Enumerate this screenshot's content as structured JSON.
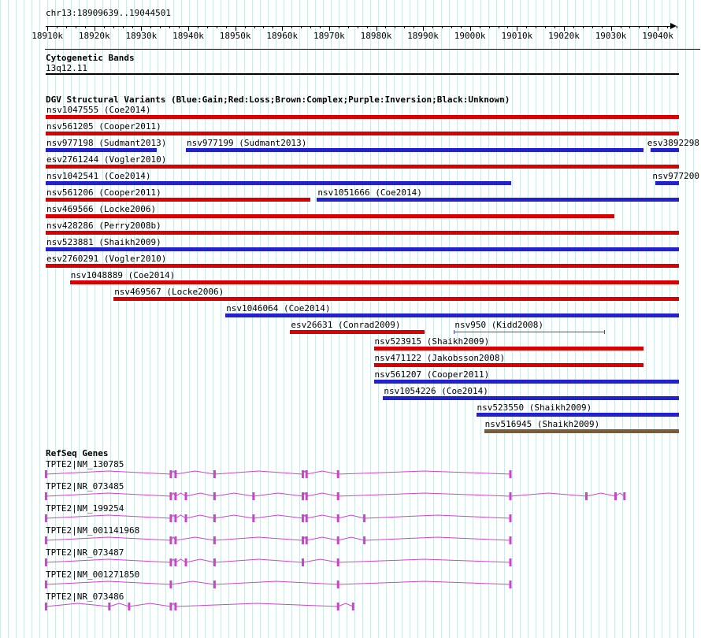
{
  "header": {
    "region": "chr13:18909639..19044501"
  },
  "region": {
    "start": 18909639,
    "end": 19044501
  },
  "ruler": {
    "minor_step": 2000,
    "ticks": [
      {
        "text": "18910k",
        "coord": 18910000
      },
      {
        "text": "18920k",
        "coord": 18920000
      },
      {
        "text": "18930k",
        "coord": 18930000
      },
      {
        "text": "18940k",
        "coord": 18940000
      },
      {
        "text": "18950k",
        "coord": 18950000
      },
      {
        "text": "18960k",
        "coord": 18960000
      },
      {
        "text": "18970k",
        "coord": 18970000
      },
      {
        "text": "18980k",
        "coord": 18980000
      },
      {
        "text": "18990k",
        "coord": 18990000
      },
      {
        "text": "19000k",
        "coord": 19000000
      },
      {
        "text": "19010k",
        "coord": 19010000
      },
      {
        "text": "19020k",
        "coord": 19020000
      },
      {
        "text": "19030k",
        "coord": 19030000
      },
      {
        "text": "19040k",
        "coord": 19040000
      }
    ]
  },
  "cytobands": {
    "title": "Cytogenetic Bands",
    "band": "13q12.11"
  },
  "dgv": {
    "title": "DGV Structural Variants (Blue:Gain;Red:Loss;Brown:Complex;Purple:Inversion;Black:Unknown)",
    "colors": {
      "gain": "#2222cc",
      "loss": "#d80000",
      "complex": "#7e5c33",
      "inversion": "#4444cc",
      "unknown": "#000000"
    },
    "rows": [
      {
        "items": [
          {
            "label": "nsv1047555 (Coe2014)",
            "color": "loss",
            "start": 18909639,
            "end": 19044501
          }
        ]
      },
      {
        "items": [
          {
            "label": "nsv561205 (Cooper2011)",
            "color": "loss",
            "start": 18909639,
            "end": 19044501
          }
        ]
      },
      {
        "items": [
          {
            "label": "nsv977198 (Sudmant2013)",
            "color": "gain",
            "start": 18909639,
            "end": 18933200
          },
          {
            "label": "nsv977199 (Sudmant2013)",
            "color": "gain",
            "start": 18939500,
            "end": 19037000
          },
          {
            "label": "esv3892298",
            "color": "gain",
            "start": 19038500,
            "end": 19044501
          }
        ]
      },
      {
        "items": [
          {
            "label": "esv2761244 (Vogler2010)",
            "color": "loss",
            "start": 18909639,
            "end": 19044501
          }
        ]
      },
      {
        "items": [
          {
            "label": "nsv1042541 (Coe2014)",
            "color": "gain",
            "start": 18909639,
            "end": 19008800
          },
          {
            "label": "nsv977200",
            "color": "gain",
            "start": 19039500,
            "end": 19044501
          }
        ]
      },
      {
        "items": [
          {
            "label": "nsv561206 (Cooper2011)",
            "color": "loss",
            "start": 18909639,
            "end": 18966000
          },
          {
            "label": "nsv1051666 (Coe2014)",
            "color": "gain",
            "start": 18967400,
            "end": 19044501
          }
        ]
      },
      {
        "items": [
          {
            "label": "nsv469566 (Locke2006)",
            "color": "loss",
            "start": 18909639,
            "end": 19030700
          }
        ]
      },
      {
        "items": [
          {
            "label": "nsv428286 (Perry2008b)",
            "color": "loss",
            "start": 18909639,
            "end": 19044501
          }
        ]
      },
      {
        "items": [
          {
            "label": "nsv523881 (Shaikh2009)",
            "color": "gain",
            "start": 18909639,
            "end": 19044501
          }
        ]
      },
      {
        "items": [
          {
            "label": "esv2760291 (Vogler2010)",
            "color": "loss",
            "start": 18909639,
            "end": 19044501
          }
        ]
      },
      {
        "items": [
          {
            "label": "nsv1048889 (Coe2014)",
            "color": "loss",
            "start": 18914800,
            "end": 19044501
          }
        ]
      },
      {
        "items": [
          {
            "label": "nsv469567 (Locke2006)",
            "color": "loss",
            "start": 18924100,
            "end": 19044501
          }
        ]
      },
      {
        "items": [
          {
            "label": "nsv1046064 (Coe2014)",
            "color": "gain",
            "start": 18947900,
            "end": 19044501
          }
        ]
      },
      {
        "items": [
          {
            "label": "esv26631 (Conrad2009)",
            "color": "loss",
            "start": 18961700,
            "end": 18990400
          },
          {
            "label": "nsv950 (Kidd2008)",
            "color": "inversion",
            "style": "line",
            "start": 18996600,
            "end": 19028700
          }
        ]
      },
      {
        "items": [
          {
            "label": "nsv523915 (Shaikh2009)",
            "color": "loss",
            "start": 18979500,
            "end": 19037000
          }
        ]
      },
      {
        "items": [
          {
            "label": "nsv471122 (Jakobsson2008)",
            "color": "loss",
            "start": 18979500,
            "end": 19037000
          }
        ]
      },
      {
        "items": [
          {
            "label": "nsv561207 (Cooper2011)",
            "color": "gain",
            "start": 18979500,
            "end": 19044501
          }
        ]
      },
      {
        "items": [
          {
            "label": "nsv1054226 (Coe2014)",
            "color": "gain",
            "start": 18981500,
            "end": 19044501
          }
        ]
      },
      {
        "items": [
          {
            "label": "nsv523550 (Shaikh2009)",
            "color": "gain",
            "start": 19001300,
            "end": 19044501
          }
        ]
      },
      {
        "items": [
          {
            "label": "nsv516945 (Shaikh2009)",
            "color": "complex",
            "start": 19003000,
            "end": 19044501
          }
        ]
      }
    ]
  },
  "genes": {
    "title": "RefSeq Genes",
    "color": "#cc44cc",
    "items": [
      {
        "label": "TPTE2|NM_130785",
        "start": 18909700,
        "end": 19008900,
        "exons": [
          18909700,
          18936300,
          18937300,
          18945600,
          18964400,
          18965200,
          18971900,
          19008600
        ]
      },
      {
        "label": "TPTE2|NR_073485",
        "start": 18909700,
        "end": 19033200,
        "exons": [
          18909700,
          18936300,
          18937300,
          18939500,
          18945600,
          18953900,
          18964400,
          18965200,
          18971900,
          19008600,
          19024800,
          19031000,
          19032900
        ]
      },
      {
        "label": "TPTE2|NM_199254",
        "start": 18909700,
        "end": 19008900,
        "exons": [
          18909700,
          18936300,
          18937300,
          18939500,
          18945600,
          18953900,
          18964400,
          18965200,
          18971900,
          18977500,
          19008600
        ]
      },
      {
        "label": "TPTE2|NM_001141968",
        "start": 18909700,
        "end": 19008900,
        "exons": [
          18909700,
          18936300,
          18937300,
          18945600,
          18964400,
          18965200,
          18971900,
          18977500,
          19008600
        ]
      },
      {
        "label": "TPTE2|NR_073487",
        "start": 18909700,
        "end": 19008900,
        "exons": [
          18909700,
          18936300,
          18937300,
          18939500,
          18945600,
          18964400,
          18971900,
          19008600
        ]
      },
      {
        "label": "TPTE2|NM_001271850",
        "start": 18909700,
        "end": 19008900,
        "exons": [
          18909700,
          18936300,
          18945600,
          18971900,
          19008600
        ]
      },
      {
        "label": "TPTE2|NR_073486",
        "start": 18909700,
        "end": 18975300,
        "exons": [
          18909700,
          18923200,
          18927400,
          18936300,
          18937300,
          18971900,
          18975100
        ]
      }
    ]
  }
}
